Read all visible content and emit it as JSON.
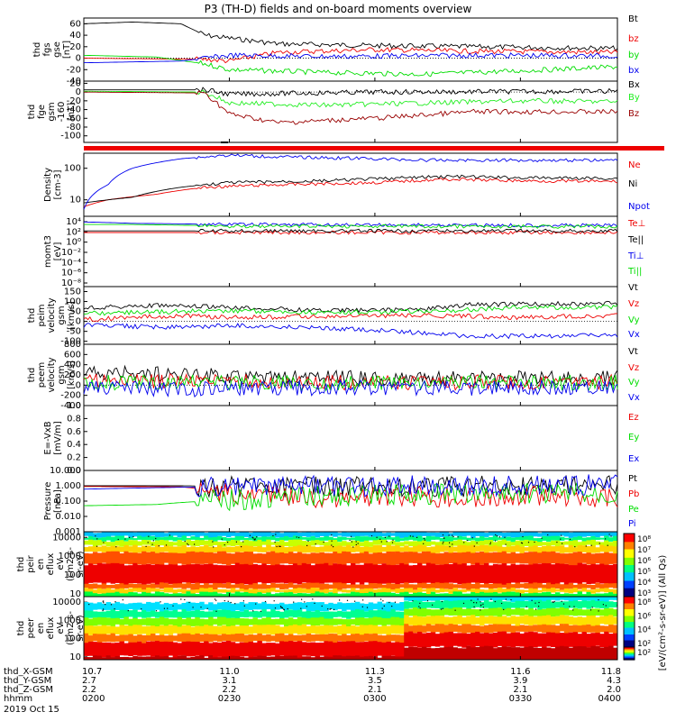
{
  "title": "P3 (TH-D) fields and on-board moments overview",
  "colors": {
    "black": "#000000",
    "red": "#ee0000",
    "green": "#00dd00",
    "blue": "#0000ee",
    "lime": "#22ee22",
    "darkred": "#990000"
  },
  "chart_data": [
    {
      "id": "fgs",
      "type": "line",
      "ylabel": [
        "thd",
        "fgs",
        "gse",
        "[nT]"
      ],
      "ylim": [
        -40,
        70
      ],
      "yticks": [
        "60",
        "40",
        "20",
        "0",
        "-20",
        "-40"
      ],
      "series": [
        {
          "name": "Bt",
          "color": "black",
          "points": [
            [
              10.7,
              60
            ],
            [
              10.8,
              63
            ],
            [
              10.9,
              60
            ],
            [
              10.95,
              40
            ],
            [
              11.0,
              35
            ],
            [
              11.1,
              25
            ],
            [
              11.3,
              22
            ],
            [
              11.5,
              20
            ],
            [
              11.7,
              18
            ],
            [
              11.8,
              17
            ]
          ]
        },
        {
          "name": "bz",
          "color": "red",
          "points": [
            [
              10.7,
              0
            ],
            [
              10.95,
              -2
            ],
            [
              11.0,
              -5
            ],
            [
              11.1,
              10
            ],
            [
              11.3,
              15
            ],
            [
              11.5,
              12
            ],
            [
              11.8,
              10
            ]
          ]
        },
        {
          "name": "by",
          "color": "green",
          "points": [
            [
              10.7,
              5
            ],
            [
              10.85,
              2
            ],
            [
              10.95,
              -10
            ],
            [
              11.0,
              -20
            ],
            [
              11.2,
              -25
            ],
            [
              11.4,
              -28
            ],
            [
              11.6,
              -22
            ],
            [
              11.8,
              -15
            ]
          ]
        },
        {
          "name": "bx",
          "color": "blue",
          "points": [
            [
              10.7,
              -8
            ],
            [
              10.9,
              -5
            ],
            [
              11.0,
              5
            ],
            [
              11.2,
              3
            ],
            [
              11.5,
              5
            ],
            [
              11.8,
              4
            ]
          ]
        }
      ]
    },
    {
      "id": "fge",
      "type": "line",
      "ylabel": [
        "thd",
        "fge",
        "gsm",
        "-160",
        "[nT]"
      ],
      "ylim": [
        -115,
        25
      ],
      "yticks": [
        "20",
        "0",
        "-20",
        "-40",
        "-60",
        "-80",
        "-100"
      ],
      "series": [
        {
          "name": "Bx",
          "color": "black",
          "points": [
            [
              10.7,
              5
            ],
            [
              10.95,
              5
            ],
            [
              11.0,
              -5
            ],
            [
              11.3,
              0
            ],
            [
              11.8,
              2
            ]
          ]
        },
        {
          "name": "By",
          "color": "lime",
          "points": [
            [
              10.7,
              2
            ],
            [
              10.95,
              0
            ],
            [
              11.0,
              -25
            ],
            [
              11.2,
              -30
            ],
            [
              11.4,
              -25
            ],
            [
              11.6,
              -20
            ],
            [
              11.8,
              -22
            ]
          ]
        },
        {
          "name": "Bz",
          "color": "darkred",
          "points": [
            [
              10.7,
              0
            ],
            [
              10.95,
              -2
            ],
            [
              11.0,
              -50
            ],
            [
              11.1,
              -70
            ],
            [
              11.3,
              -60
            ],
            [
              11.5,
              -45
            ],
            [
              11.8,
              -45
            ]
          ]
        }
      ]
    },
    {
      "id": "density",
      "type": "line",
      "log": true,
      "ylabel": [
        "Density",
        "[cm-3]"
      ],
      "ylim": [
        3,
        300
      ],
      "yticks": [
        "100",
        "10"
      ],
      "series": [
        {
          "name": "Ne",
          "color": "red",
          "points": [
            [
              10.7,
              6
            ],
            [
              10.75,
              10
            ],
            [
              10.85,
              15
            ],
            [
              10.95,
              25
            ],
            [
              11.1,
              30
            ],
            [
              11.3,
              35
            ],
            [
              11.45,
              45
            ],
            [
              11.6,
              40
            ],
            [
              11.8,
              38
            ]
          ]
        },
        {
          "name": "Ni",
          "color": "black",
          "points": [
            [
              10.7,
              8
            ],
            [
              10.8,
              12
            ],
            [
              10.9,
              25
            ],
            [
              11.0,
              35
            ],
            [
              11.2,
              40
            ],
            [
              11.45,
              55
            ],
            [
              11.6,
              50
            ],
            [
              11.8,
              48
            ]
          ]
        },
        {
          "name": "Npot",
          "color": "blue",
          "points": [
            [
              10.7,
              5
            ],
            [
              10.75,
              30
            ],
            [
              10.8,
              100
            ],
            [
              10.9,
              200
            ],
            [
              11.0,
              260
            ],
            [
              11.1,
              230
            ],
            [
              11.3,
              200
            ],
            [
              11.4,
              180
            ]
          ]
        }
      ]
    },
    {
      "id": "mom",
      "type": "line",
      "log": true,
      "ylabel": [
        "momt3",
        "[eV]"
      ],
      "ylim": [
        1e-09,
        10000
      ],
      "yticks": [
        "10⁴",
        "10²",
        "10⁰",
        "10⁻²",
        "10⁻⁴",
        "10⁻⁶",
        "10⁻⁸"
      ],
      "series": [
        {
          "name": "Te⊥",
          "color": "red",
          "points": [
            [
              10.7,
              10
            ],
            [
              11.8,
              10
            ]
          ]
        },
        {
          "name": "Te||",
          "color": "black",
          "points": [
            [
              10.7,
              20
            ],
            [
              11.8,
              20
            ]
          ]
        },
        {
          "name": "Ti⊥",
          "color": "blue",
          "points": [
            [
              10.7,
              900
            ],
            [
              10.8,
              500
            ],
            [
              11.0,
              300
            ],
            [
              11.8,
              200
            ]
          ]
        },
        {
          "name": "Ti||",
          "color": "green",
          "points": [
            [
              10.7,
              300
            ],
            [
              10.8,
              300
            ],
            [
              11.0,
              150
            ],
            [
              11.8,
              120
            ]
          ]
        }
      ]
    },
    {
      "id": "peim",
      "type": "line",
      "ylabel": [
        "thd",
        "peim",
        "velocity",
        "gsm",
        "[km/s]"
      ],
      "ylim": [
        -115,
        175
      ],
      "yticks": [
        "150",
        "100",
        "50",
        "0",
        "-50",
        "-100"
      ],
      "series": [
        {
          "name": "Vt",
          "color": "black",
          "points": [
            [
              10.7,
              70
            ],
            [
              10.85,
              80
            ],
            [
              11.0,
              70
            ],
            [
              11.2,
              55
            ],
            [
              11.4,
              60
            ],
            [
              11.5,
              85
            ],
            [
              11.8,
              90
            ]
          ]
        },
        {
          "name": "Vz",
          "color": "red",
          "points": [
            [
              10.7,
              10
            ],
            [
              10.9,
              30
            ],
            [
              11.0,
              20
            ],
            [
              11.2,
              25
            ],
            [
              11.4,
              30
            ],
            [
              11.6,
              20
            ],
            [
              11.8,
              30
            ]
          ]
        },
        {
          "name": "Vy",
          "color": "green",
          "points": [
            [
              10.7,
              40
            ],
            [
              10.9,
              50
            ],
            [
              11.0,
              55
            ],
            [
              11.2,
              45
            ],
            [
              11.4,
              50
            ],
            [
              11.6,
              70
            ],
            [
              11.8,
              70
            ]
          ]
        },
        {
          "name": "Vx",
          "color": "blue",
          "points": [
            [
              10.7,
              -20
            ],
            [
              10.9,
              -30
            ],
            [
              11.0,
              -20
            ],
            [
              11.2,
              -35
            ],
            [
              11.35,
              -50
            ],
            [
              11.5,
              -75
            ],
            [
              11.8,
              -70
            ]
          ]
        }
      ]
    },
    {
      "id": "peem",
      "type": "line",
      "ylabel": [
        "thd",
        "peem",
        "velocity",
        "gsm",
        "[km/s]"
      ],
      "ylim": [
        -400,
        800
      ],
      "yticks": [
        "800",
        "600",
        "400",
        "200",
        "0",
        "-200",
        "-400"
      ],
      "series": [
        {
          "name": "Vt",
          "color": "black",
          "points": [
            [
              10.7,
              200
            ],
            [
              10.8,
              250
            ],
            [
              10.9,
              200
            ],
            [
              11.1,
              150
            ],
            [
              11.4,
              120
            ],
            [
              11.8,
              140
            ]
          ]
        },
        {
          "name": "Vz",
          "color": "red",
          "points": [
            [
              10.7,
              100
            ],
            [
              10.9,
              80
            ],
            [
              11.2,
              50
            ],
            [
              11.8,
              60
            ]
          ]
        },
        {
          "name": "Vy",
          "color": "green",
          "points": [
            [
              10.7,
              50
            ],
            [
              10.9,
              60
            ],
            [
              11.2,
              40
            ],
            [
              11.8,
              50
            ]
          ]
        },
        {
          "name": "Vx",
          "color": "blue",
          "points": [
            [
              10.7,
              -60
            ],
            [
              10.9,
              -80
            ],
            [
              11.2,
              -50
            ],
            [
              11.8,
              -60
            ]
          ]
        }
      ]
    },
    {
      "id": "efield",
      "type": "line",
      "ylabel": [
        "E=-VxB",
        "[mV/m]"
      ],
      "ylim": [
        0,
        1
      ],
      "yticks": [
        "1.0",
        "0.8",
        "0.6",
        "0.4",
        "0.2",
        "0.0"
      ],
      "series": [
        {
          "name": "Ez",
          "color": "red",
          "points": []
        },
        {
          "name": "Ey",
          "color": "green",
          "points": []
        },
        {
          "name": "Ex",
          "color": "blue",
          "points": []
        }
      ]
    },
    {
      "id": "pressure",
      "type": "line",
      "log": true,
      "ylabel": [
        "Pressure",
        "[nPa]"
      ],
      "ylim": [
        0.001,
        10
      ],
      "yticks": [
        "10.000",
        "1.000",
        "0.100",
        "0.010",
        "0.001"
      ],
      "series": [
        {
          "name": "Pt",
          "color": "black",
          "points": [
            [
              10.7,
              1.0
            ],
            [
              10.9,
              1.0
            ],
            [
              11.0,
              0.9
            ],
            [
              11.3,
              0.85
            ],
            [
              11.6,
              1.0
            ],
            [
              11.8,
              1.05
            ]
          ]
        },
        {
          "name": "Pb",
          "color": "red",
          "points": [
            [
              10.7,
              0.9
            ],
            [
              10.9,
              0.85
            ],
            [
              11.0,
              0.3
            ],
            [
              11.2,
              0.15
            ],
            [
              11.4,
              0.2
            ],
            [
              11.6,
              0.2
            ],
            [
              11.8,
              0.2
            ]
          ]
        },
        {
          "name": "Pe",
          "color": "green",
          "points": [
            [
              10.7,
              0.05
            ],
            [
              10.85,
              0.06
            ],
            [
              10.95,
              0.1
            ],
            [
              11.2,
              0.2
            ],
            [
              11.45,
              0.3
            ],
            [
              11.6,
              0.35
            ],
            [
              11.8,
              0.35
            ]
          ]
        },
        {
          "name": "Pi",
          "color": "blue",
          "points": [
            [
              10.7,
              0.6
            ],
            [
              10.9,
              0.8
            ],
            [
              11.1,
              0.85
            ],
            [
              11.45,
              1.1
            ],
            [
              11.8,
              1.1
            ]
          ]
        }
      ]
    },
    {
      "id": "peir",
      "type": "heatmap",
      "ylabel": [
        "thd",
        "peir",
        "en",
        "eflux",
        "eV",
        "(cm2-s-",
        "sr-eV)"
      ],
      "ylim": [
        7,
        20000
      ],
      "yticks": [
        "10000",
        "1000",
        "100",
        "10"
      ]
    },
    {
      "id": "peer",
      "type": "heatmap",
      "ylabel": [
        "thd",
        "peer",
        "en",
        "eflux",
        "eV",
        "(cm2-s-",
        "sr-eV)"
      ],
      "ylim": [
        7,
        20000
      ],
      "yticks": [
        "10000",
        "1000",
        "100",
        "10"
      ]
    }
  ],
  "colorbar": {
    "label": "[eV/(cm²-s-sr-eV)] (All Qs)",
    "ticks1": [
      "10⁸",
      "10⁷",
      "10⁶",
      "10⁵",
      "10⁴",
      "10³"
    ],
    "ticks2": [
      "10⁸",
      "10⁶",
      "10⁴",
      "10²"
    ],
    "ticks3": [
      "10²"
    ]
  },
  "xaxis": {
    "range": [
      10.7,
      11.8
    ],
    "rows": [
      {
        "label": "thd_X-GSM",
        "values": [
          "10.7",
          "11.0",
          "11.3",
          "11.6",
          "11.8"
        ]
      },
      {
        "label": "thd_Y-GSM",
        "values": [
          "2.7",
          "3.1",
          "3.5",
          "3.9",
          "4.3"
        ]
      },
      {
        "label": "thd_Z-GSM",
        "values": [
          "2.2",
          "2.2",
          "2.1",
          "2.1",
          "2.0"
        ]
      },
      {
        "label": "hhmm",
        "values": [
          "0200",
          "0230",
          "0300",
          "0330",
          "0400"
        ]
      }
    ],
    "date": "2019 Oct 15"
  }
}
